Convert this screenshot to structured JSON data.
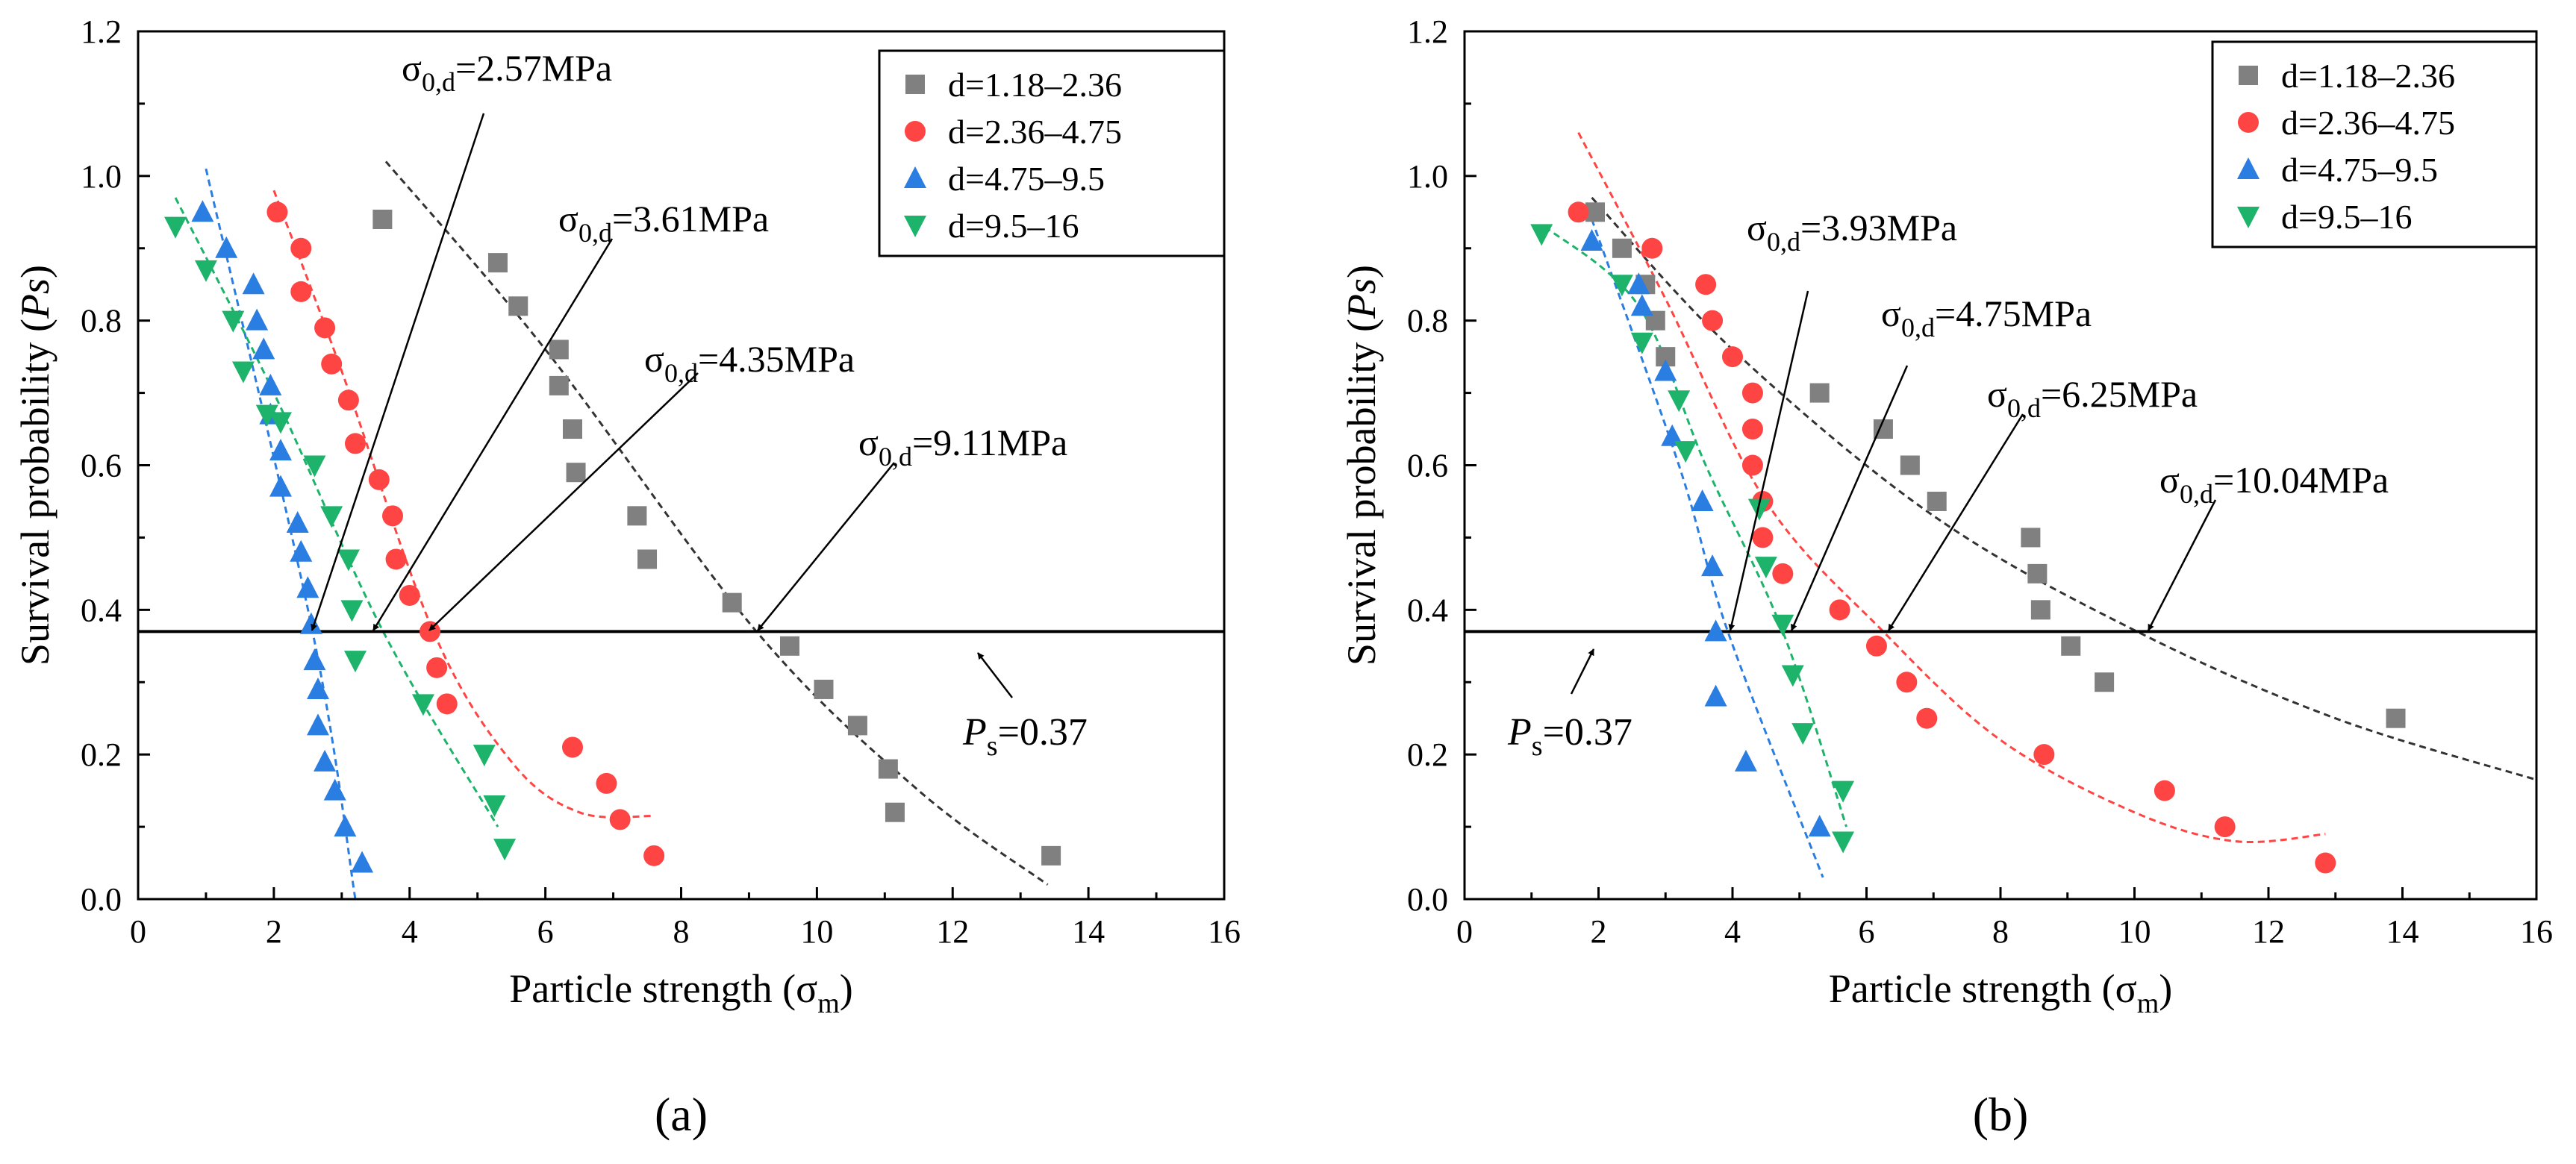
{
  "chart_data": [
    {
      "type": "scatter",
      "panel_label": "(a)",
      "xlabel_main": "Particle strength (σ",
      "xlabel_sub": "m",
      "xlabel_end": ")",
      "ylabel_pre": "Survival probability (",
      "ylabel_italic": "Ps",
      "ylabel_post": ")",
      "xlim": [
        0,
        16
      ],
      "ylim": [
        0,
        1.2
      ],
      "xticks": [
        "0",
        "2",
        "4",
        "6",
        "8",
        "10",
        "12",
        "14",
        "16"
      ],
      "yticks": [
        "0.0",
        "0.2",
        "0.4",
        "0.6",
        "0.8",
        "1.0",
        "1.2"
      ],
      "ref_line": {
        "y": 0.37,
        "label_italic": "P",
        "label_sub": "s",
        "label_rest": "=0.37"
      },
      "series": [
        {
          "name": "d=1.18–2.36",
          "marker": "square",
          "color": "#808080",
          "points": [
            [
              3.6,
              0.94
            ],
            [
              5.3,
              0.88
            ],
            [
              5.6,
              0.82
            ],
            [
              6.2,
              0.76
            ],
            [
              6.2,
              0.71
            ],
            [
              6.4,
              0.65
            ],
            [
              6.45,
              0.59
            ],
            [
              7.35,
              0.53
            ],
            [
              7.5,
              0.47
            ],
            [
              8.75,
              0.41
            ],
            [
              9.6,
              0.35
            ],
            [
              10.1,
              0.29
            ],
            [
              10.6,
              0.24
            ],
            [
              11.05,
              0.18
            ],
            [
              11.15,
              0.12
            ],
            [
              13.45,
              0.06
            ]
          ],
          "fit": [
            [
              3.65,
              1.02
            ],
            [
              6.0,
              0.76
            ],
            [
              9.11,
              0.37
            ],
            [
              11.5,
              0.15
            ],
            [
              13.4,
              0.02
            ]
          ]
        },
        {
          "name": "d=2.36–4.75",
          "marker": "circle",
          "color": "#ff4444",
          "points": [
            [
              2.05,
              0.95
            ],
            [
              2.4,
              0.9
            ],
            [
              2.4,
              0.84
            ],
            [
              2.75,
              0.79
            ],
            [
              2.85,
              0.74
            ],
            [
              3.1,
              0.69
            ],
            [
              3.2,
              0.63
            ],
            [
              3.55,
              0.58
            ],
            [
              3.75,
              0.53
            ],
            [
              3.8,
              0.47
            ],
            [
              4.0,
              0.42
            ],
            [
              4.3,
              0.37
            ],
            [
              4.4,
              0.32
            ],
            [
              4.55,
              0.27
            ],
            [
              6.4,
              0.21
            ],
            [
              6.9,
              0.16
            ],
            [
              7.1,
              0.11
            ],
            [
              7.6,
              0.06
            ]
          ],
          "fit": [
            [
              2.0,
              0.98
            ],
            [
              3.0,
              0.73
            ],
            [
              4.35,
              0.37
            ],
            [
              5.5,
              0.19
            ],
            [
              6.5,
              0.12
            ],
            [
              7.6,
              0.115
            ]
          ]
        },
        {
          "name": "d=4.75–9.5",
          "marker": "triangle-up",
          "color": "#2a7de1",
          "points": [
            [
              0.95,
              0.95
            ],
            [
              1.3,
              0.9
            ],
            [
              1.7,
              0.85
            ],
            [
              1.75,
              0.8
            ],
            [
              1.85,
              0.76
            ],
            [
              1.95,
              0.71
            ],
            [
              1.95,
              0.67
            ],
            [
              2.1,
              0.62
            ],
            [
              2.1,
              0.57
            ],
            [
              2.35,
              0.52
            ],
            [
              2.4,
              0.48
            ],
            [
              2.5,
              0.43
            ],
            [
              2.55,
              0.38
            ],
            [
              2.6,
              0.33
            ],
            [
              2.65,
              0.29
            ],
            [
              2.65,
              0.24
            ],
            [
              2.75,
              0.19
            ],
            [
              2.9,
              0.15
            ],
            [
              3.05,
              0.1
            ],
            [
              3.3,
              0.05
            ]
          ],
          "fit": [
            [
              1.0,
              1.01
            ],
            [
              2.57,
              0.37
            ],
            [
              3.2,
              0.0
            ]
          ]
        },
        {
          "name": "d=9.5–16",
          "marker": "triangle-down",
          "color": "#1db36a",
          "points": [
            [
              0.55,
              0.93
            ],
            [
              1.0,
              0.87
            ],
            [
              1.4,
              0.8
            ],
            [
              1.55,
              0.73
            ],
            [
              1.9,
              0.67
            ],
            [
              2.1,
              0.66
            ],
            [
              2.6,
              0.6
            ],
            [
              2.85,
              0.53
            ],
            [
              3.1,
              0.47
            ],
            [
              3.15,
              0.4
            ],
            [
              3.2,
              0.33
            ],
            [
              4.2,
              0.27
            ],
            [
              5.1,
              0.2
            ],
            [
              5.25,
              0.13
            ],
            [
              5.4,
              0.07
            ]
          ],
          "fit": [
            [
              0.55,
              0.97
            ],
            [
              2.0,
              0.7
            ],
            [
              3.61,
              0.37
            ],
            [
              5.3,
              0.1
            ]
          ]
        }
      ],
      "annotations": [
        {
          "sigma": "σ",
          "sub": "0,d",
          "value": "=2.57MPa"
        },
        {
          "sigma": "σ",
          "sub": "0,d",
          "value": "=3.61MPa"
        },
        {
          "sigma": "σ",
          "sub": "0,d",
          "value": "=4.35MPa"
        },
        {
          "sigma": "σ",
          "sub": "0,d",
          "value": "=9.11MPa"
        }
      ]
    },
    {
      "type": "scatter",
      "panel_label": "(b)",
      "xlabel_main": "Particle strength (σ",
      "xlabel_sub": "m",
      "xlabel_end": ")",
      "ylabel_pre": "Survival probability (",
      "ylabel_italic": "Ps",
      "ylabel_post": ")",
      "xlim": [
        0,
        16
      ],
      "ylim": [
        0,
        1.2
      ],
      "xticks": [
        "0",
        "2",
        "4",
        "6",
        "8",
        "10",
        "12",
        "14",
        "16"
      ],
      "yticks": [
        "0.0",
        "0.2",
        "0.4",
        "0.6",
        "0.8",
        "1.0",
        "1.2"
      ],
      "ref_line": {
        "y": 0.37,
        "label_italic": "P",
        "label_sub": "s",
        "label_rest": "=0.37"
      },
      "series": [
        {
          "name": "d=1.18–2.36",
          "marker": "square",
          "color": "#808080",
          "points": [
            [
              1.95,
              0.95
            ],
            [
              2.35,
              0.9
            ],
            [
              2.7,
              0.85
            ],
            [
              2.85,
              0.8
            ],
            [
              3.0,
              0.75
            ],
            [
              5.3,
              0.7
            ],
            [
              6.25,
              0.65
            ],
            [
              6.65,
              0.6
            ],
            [
              7.05,
              0.55
            ],
            [
              8.45,
              0.5
            ],
            [
              8.55,
              0.45
            ],
            [
              8.6,
              0.4
            ],
            [
              9.05,
              0.35
            ],
            [
              9.55,
              0.3
            ],
            [
              13.9,
              0.25
            ]
          ],
          "fit": [
            [
              1.9,
              0.97
            ],
            [
              4.0,
              0.76
            ],
            [
              7.0,
              0.53
            ],
            [
              10.04,
              0.37
            ],
            [
              13.0,
              0.25
            ],
            [
              16.0,
              0.165
            ]
          ]
        },
        {
          "name": "d=2.36–4.75",
          "marker": "circle",
          "color": "#ff4444",
          "points": [
            [
              1.7,
              0.95
            ],
            [
              2.8,
              0.9
            ],
            [
              3.6,
              0.85
            ],
            [
              3.7,
              0.8
            ],
            [
              4.0,
              0.75
            ],
            [
              4.3,
              0.7
            ],
            [
              4.3,
              0.65
            ],
            [
              4.3,
              0.6
            ],
            [
              4.45,
              0.55
            ],
            [
              4.45,
              0.5
            ],
            [
              4.75,
              0.45
            ],
            [
              5.6,
              0.4
            ],
            [
              6.15,
              0.35
            ],
            [
              6.6,
              0.3
            ],
            [
              6.9,
              0.25
            ],
            [
              8.65,
              0.2
            ],
            [
              10.45,
              0.15
            ],
            [
              11.35,
              0.1
            ],
            [
              12.85,
              0.05
            ]
          ],
          "fit": [
            [
              1.7,
              1.06
            ],
            [
              3.0,
              0.83
            ],
            [
              4.5,
              0.55
            ],
            [
              6.25,
              0.37
            ],
            [
              8.0,
              0.22
            ],
            [
              10.0,
              0.12
            ],
            [
              11.5,
              0.08
            ],
            [
              12.85,
              0.09
            ]
          ]
        },
        {
          "name": "d=4.75–9.5",
          "marker": "triangle-up",
          "color": "#2a7de1",
          "points": [
            [
              1.9,
              0.91
            ],
            [
              2.6,
              0.85
            ],
            [
              2.65,
              0.82
            ],
            [
              3.0,
              0.73
            ],
            [
              3.1,
              0.64
            ],
            [
              3.55,
              0.55
            ],
            [
              3.7,
              0.46
            ],
            [
              3.75,
              0.37
            ],
            [
              3.75,
              0.28
            ],
            [
              4.2,
              0.19
            ],
            [
              5.3,
              0.1
            ]
          ],
          "fit": [
            [
              1.9,
              0.94
            ],
            [
              3.2,
              0.6
            ],
            [
              3.93,
              0.37
            ],
            [
              5.35,
              0.03
            ]
          ]
        },
        {
          "name": "d=9.5–16",
          "marker": "triangle-down",
          "color": "#1db36a",
          "points": [
            [
              1.15,
              0.92
            ],
            [
              2.35,
              0.85
            ],
            [
              2.65,
              0.77
            ],
            [
              3.2,
              0.69
            ],
            [
              3.3,
              0.62
            ],
            [
              4.4,
              0.54
            ],
            [
              4.5,
              0.46
            ],
            [
              4.75,
              0.38
            ],
            [
              4.9,
              0.31
            ],
            [
              5.05,
              0.23
            ],
            [
              5.65,
              0.15
            ],
            [
              5.65,
              0.08
            ]
          ],
          "fit": [
            [
              1.2,
              0.93
            ],
            [
              2.6,
              0.82
            ],
            [
              3.6,
              0.6
            ],
            [
              4.75,
              0.37
            ],
            [
              5.7,
              0.1
            ]
          ]
        }
      ],
      "annotations": [
        {
          "sigma": "σ",
          "sub": "0,d",
          "value": "=3.93MPa"
        },
        {
          "sigma": "σ",
          "sub": "0,d",
          "value": "=4.75MPa"
        },
        {
          "sigma": "σ",
          "sub": "0,d",
          "value": "=6.25MPa"
        },
        {
          "sigma": "σ",
          "sub": "0,d",
          "value": "=10.04MPa"
        }
      ]
    }
  ]
}
